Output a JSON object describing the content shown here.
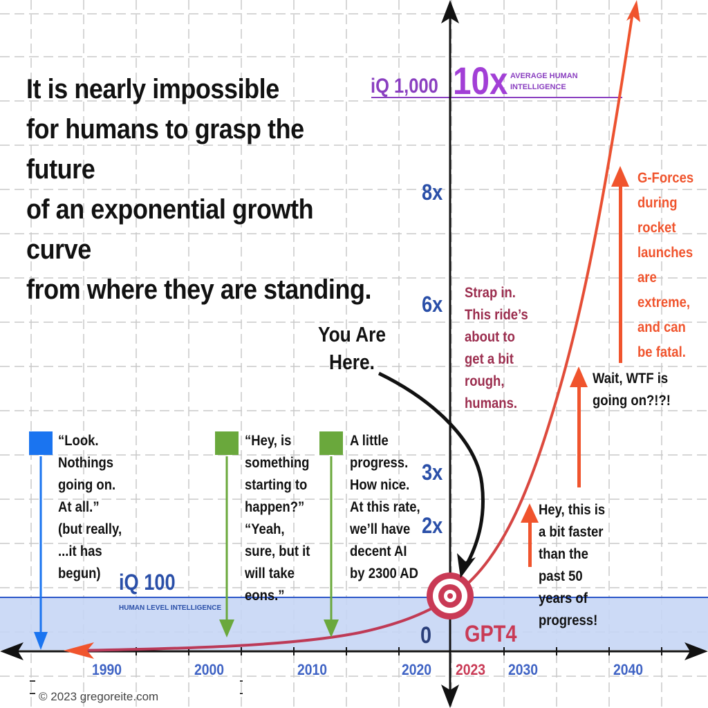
{
  "title": "It is nearly impossible\nfor humans to grasp the future\nof an exponential growth curve\nfrom where they are standing.",
  "top_line": {
    "iq_label": "iQ 1,000",
    "multiplier": "10x",
    "caption": "AVERAGE HUMAN\nINTELLIGENCE"
  },
  "baseline": {
    "iq_label": "iQ 100",
    "caption": "HUMAN LEVEL INTELLIGENCE",
    "origin_label": "0",
    "gpt_label": "GPT4"
  },
  "y_ticks": [
    "8x",
    "6x",
    "3x",
    "2x"
  ],
  "x_ticks": [
    "1990",
    "2000",
    "2010",
    "2020",
    "2023",
    "2030",
    "2040"
  ],
  "you_are_here": "You Are\nHere.",
  "annotations": {
    "look": "“Look.\nNothings\ngoing on.\nAt all.”\n(but really,\n...it has\nbegun)",
    "hey_is_something": "“Hey, is\nsomething\nstarting to\nhappen?”\n“Yeah,\nsure, but it\nwill take\neons.”",
    "little_progress": "A little\nprogress.\nHow nice.\nAt this rate,\nwe’ll have\ndecent AI\nby 2300 AD",
    "strap_in": "Strap in.\nThis ride’s\nabout to\nget a bit\nrough,\nhumans.",
    "bit_faster": "Hey, this is\na bit faster\nthan the\npast 50\nyears of\nprogress!",
    "wait_wtf": "Wait, WTF is\ngoing on?!?!",
    "g_forces": "G-Forces\nduring\nrocket\nlaunches\nare\nextreme,\nand can\nbe fatal."
  },
  "copyright": "© 2023 gregoreite.com",
  "colors": {
    "curve": "#f0542d",
    "curve_dark": "#b83a5a",
    "baseline_band": "#c6d6f5",
    "baseline_line": "#2a55c8",
    "top_line": "#8a3fc0",
    "axis": "#111111",
    "blue_marker": "#1a74f0",
    "green_marker": "#6aa83c"
  }
}
